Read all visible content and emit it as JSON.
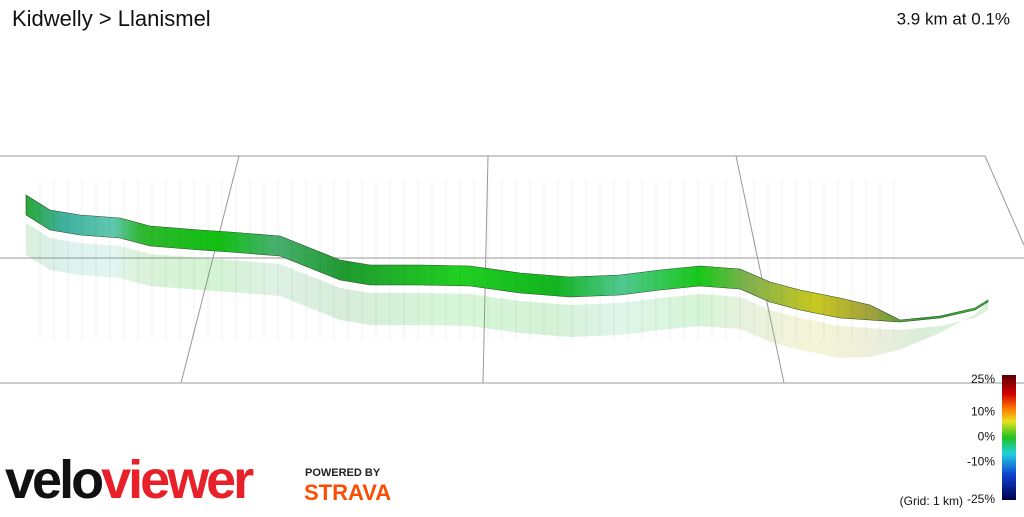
{
  "header": {
    "title": "Kidwelly > Llanismel",
    "stats": "3.9 km at 0.1%"
  },
  "legend": {
    "ticks": [
      {
        "value": 25,
        "label": "25%"
      },
      {
        "value": 10,
        "label": "10%"
      },
      {
        "value": 0,
        "label": "0%"
      },
      {
        "value": -10,
        "label": "-10%"
      },
      {
        "value": -25,
        "label": "-25%"
      }
    ],
    "grid_note": "(Grid: 1 km)"
  },
  "branding": {
    "logo_dark": "velo",
    "logo_red": "viewer",
    "powered": "POWERED BY",
    "strava": "STRAVA"
  }
}
